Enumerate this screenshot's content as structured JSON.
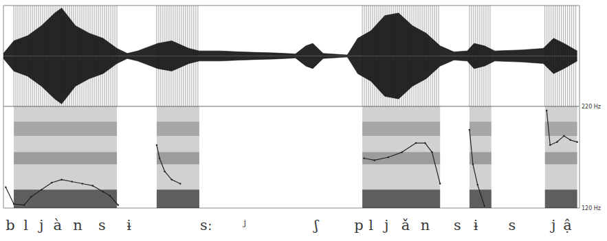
{
  "chart_data": [
    {
      "type": "area",
      "color": "#111111",
      "x": [
        0,
        1.8,
        4.2,
        6.6,
        8.9,
        10.1,
        12.5,
        14.9,
        17.3,
        19.7,
        21.5,
        23.3,
        26.8,
        29.2,
        32.2,
        34.0,
        37.6,
        41.2,
        47.1,
        50.7,
        52.5,
        53.7,
        55.5,
        59.7,
        61.5,
        63.8,
        66.2,
        68.6,
        71.0,
        73.4,
        75.8,
        78.2,
        80.5,
        81.7,
        83.5,
        85.3,
        90.1,
        93.7,
        95.5,
        97.3,
        99.6
      ],
      "values": [
        0.05,
        0.3,
        0.4,
        0.6,
        0.85,
        0.95,
        0.6,
        0.45,
        0.35,
        0.15,
        0.05,
        0.1,
        0.25,
        0.3,
        0.15,
        0.1,
        0.1,
        0.08,
        0.06,
        0.04,
        0.2,
        0.25,
        0.05,
        0.02,
        0.35,
        0.5,
        0.8,
        0.85,
        0.6,
        0.45,
        0.2,
        0.08,
        0.1,
        0.25,
        0.2,
        0.1,
        0.12,
        0.15,
        0.35,
        0.25,
        0.1
      ],
      "voiced_intervals": [
        [
          1.8,
          19.7
        ],
        [
          26.6,
          34.0
        ],
        [
          62.3,
          75.8
        ],
        [
          80.9,
          84.7
        ],
        [
          94.0,
          99.6
        ]
      ],
      "xlim": [
        0,
        100
      ],
      "ylim": [
        -1,
        1
      ],
      "tick_labels": false,
      "grid": false
    },
    {
      "type": "line",
      "color": "#222222",
      "marker": "circle",
      "x": [
        0.4,
        1.8,
        3.6,
        4.8,
        6.6,
        8.4,
        10.1,
        11.9,
        13.7,
        15.5,
        17.3,
        18.5,
        19.9,
        23,
        26.6,
        27.1,
        28.0,
        29.2,
        30.7,
        46,
        62.6,
        64.4,
        66.8,
        69.2,
        71.6,
        73.2,
        74.4,
        75.8,
        78,
        80.9,
        81.5,
        82.3,
        83.5,
        88,
        94.3,
        94.9,
        96.1,
        97.3,
        98.4,
        99.6
      ],
      "values": [
        140.5,
        124,
        123,
        131,
        138,
        145,
        148,
        146,
        144,
        142,
        136,
        132,
        123,
        null,
        182,
        169,
        156,
        148,
        144,
        null,
        169,
        167,
        170,
        175,
        184,
        184,
        175,
        144,
        null,
        197,
        163,
        143,
        122,
        null,
        216,
        182,
        185,
        191,
        187,
        185
      ],
      "xlim": [
        0,
        100
      ],
      "ylim": [
        120,
        220
      ],
      "yticks": [
        {
          "value": 120,
          "label": "120 Hz"
        },
        {
          "value": 220,
          "label": "220 Hz"
        }
      ],
      "tick_labels": "y",
      "grid": false,
      "annotations": [
        {
          "text": "b",
          "x": 1.2
        },
        {
          "text": "l",
          "x": 3.9
        },
        {
          "text": "j",
          "x": 6.6
        },
        {
          "text": "à",
          "x": 9.4
        },
        {
          "text": "n",
          "x": 12.9
        },
        {
          "text": "s",
          "x": 17.1
        },
        {
          "text": "ɨ",
          "x": 21.8
        },
        {
          "text": "sː",
          "x": 35.2
        },
        {
          "text": "ʲ",
          "x": 41.8
        },
        {
          "text": "ʃ",
          "x": 54.3
        },
        {
          "text": "p",
          "x": 61.7
        },
        {
          "text": "l",
          "x": 63.8
        },
        {
          "text": "j",
          "x": 66.5
        },
        {
          "text": "ǎ",
          "x": 69.8
        },
        {
          "text": "n",
          "x": 73.2
        },
        {
          "text": "s",
          "x": 78.8
        },
        {
          "text": "ɨ",
          "x": 82.0
        },
        {
          "text": "s",
          "x": 88.3
        },
        {
          "text": "j",
          "x": 95.5
        },
        {
          "text": "ậ",
          "x": 97.9
        }
      ]
    }
  ]
}
